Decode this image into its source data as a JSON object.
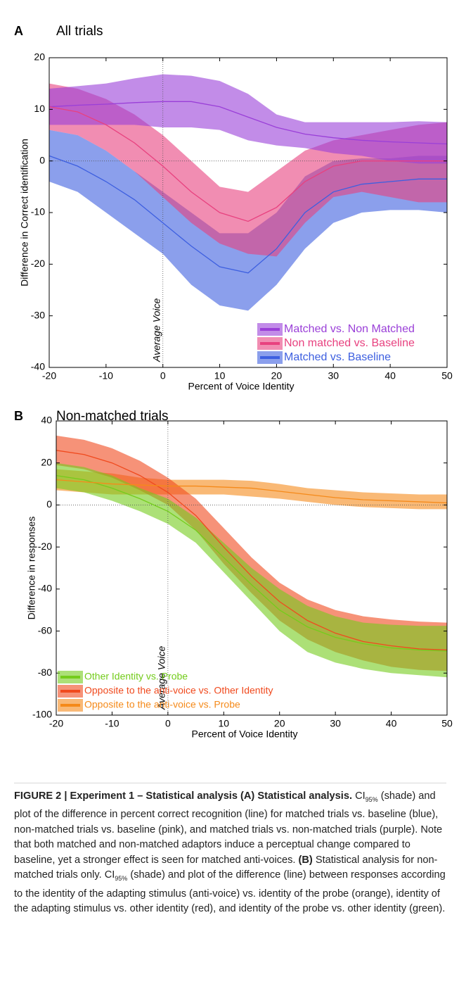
{
  "chart_data": [
    {
      "type": "line",
      "panel": "A",
      "title": "All trials",
      "xlabel": "Percent of Voice Identity",
      "ylabel": "Difference in Correct identification",
      "annotation": "Average Voice",
      "vline": 0,
      "hline": 0,
      "x": [
        -20,
        -15,
        -10,
        -5,
        0,
        5,
        10,
        15,
        20,
        25,
        30,
        35,
        40,
        45,
        50
      ],
      "xlim": [
        -20,
        50
      ],
      "xticks": [
        -20,
        -10,
        0,
        10,
        20,
        30,
        40,
        50
      ],
      "ylim": [
        -40,
        20
      ],
      "yticks": [
        -40,
        -30,
        -20,
        -10,
        0,
        10,
        20
      ],
      "legend": "lower right",
      "series": [
        {
          "name": "Matched vs. Non Matched",
          "color": "#9a3fd8",
          "values": [
            10.5,
            10.8,
            11,
            11.3,
            11.5,
            11.5,
            10.5,
            8.5,
            6.5,
            5.2,
            4.5,
            4,
            3.7,
            3.5,
            3.3
          ],
          "upper": [
            14,
            14.5,
            15,
            16,
            16.8,
            16.5,
            15.5,
            13,
            9,
            7.5,
            7.5,
            7.5,
            7.5,
            7.7,
            7.5
          ],
          "lower": [
            7,
            7,
            7,
            7,
            6.5,
            6.5,
            6,
            4,
            3,
            2.5,
            1.5,
            1,
            0,
            -0.5,
            -0.5
          ]
        },
        {
          "name": "Non matched vs. Baseline",
          "color": "#e8417f",
          "values": [
            10.5,
            9.5,
            7,
            3.5,
            -1,
            -6,
            -10,
            -11.7,
            -9,
            -4,
            -1,
            0,
            0,
            0,
            0
          ],
          "upper": [
            15,
            14,
            12,
            9,
            5,
            0,
            -5,
            -6,
            -2,
            2,
            4,
            5,
            6,
            7,
            7.5
          ],
          "lower": [
            6,
            5,
            2,
            -2,
            -7,
            -12,
            -16,
            -18,
            -18.5,
            -12,
            -7,
            -6,
            -7,
            -8,
            -8
          ]
        },
        {
          "name": "Matched vs. Baseline",
          "color": "#3d5fe0",
          "values": [
            1,
            -1,
            -4,
            -7.5,
            -12,
            -16.5,
            -20.5,
            -21.7,
            -17,
            -10,
            -6,
            -4.5,
            -4,
            -3.5,
            -3.5
          ],
          "upper": [
            6,
            5,
            2,
            -2,
            -6,
            -10,
            -14,
            -14,
            -10,
            -3,
            0,
            0.5,
            0.5,
            1,
            1
          ],
          "lower": [
            -4,
            -6,
            -10,
            -14,
            -18,
            -24,
            -28,
            -29,
            -24,
            -17,
            -12,
            -10,
            -9.5,
            -9.5,
            -10
          ]
        }
      ]
    },
    {
      "type": "line",
      "panel": "B",
      "title": "Non-matched trials",
      "xlabel": "Percent of Voice Identity",
      "ylabel": "Difference in responses",
      "annotation": "Average Voice",
      "vline": 0,
      "hline": 0,
      "x": [
        -20,
        -15,
        -10,
        -5,
        0,
        5,
        10,
        15,
        20,
        25,
        30,
        35,
        40,
        45,
        50
      ],
      "xlim": [
        -20,
        50
      ],
      "xticks": [
        -20,
        -10,
        0,
        10,
        20,
        30,
        40,
        50
      ],
      "ylim": [
        -100,
        40
      ],
      "yticks": [
        -100,
        -80,
        -60,
        -40,
        -20,
        0,
        20,
        40
      ],
      "legend": "lower left",
      "series": [
        {
          "name": "Other Identity vs. Probe",
          "color": "#74cc1c",
          "values": [
            14,
            12,
            8,
            3,
            -3,
            -12,
            -25,
            -38,
            -50,
            -58,
            -63,
            -66,
            -68,
            -69,
            -69.5
          ],
          "upper": [
            20,
            18,
            14,
            8,
            3,
            -6,
            -18,
            -30,
            -40,
            -48,
            -53,
            -56,
            -57,
            -57.5,
            -57.5
          ],
          "lower": [
            8,
            6,
            2,
            -3,
            -9,
            -18,
            -32,
            -46,
            -60,
            -70,
            -75,
            -78,
            -80,
            -81,
            -82
          ]
        },
        {
          "name": "Opposite to the anti-voice vs. Other Identity",
          "color": "#f04a1e",
          "values": [
            26,
            24,
            20,
            14,
            6,
            -5,
            -20,
            -34,
            -46,
            -55,
            -61,
            -65,
            -67,
            -68.5,
            -69
          ],
          "upper": [
            33,
            31,
            27,
            21,
            13,
            3,
            -11,
            -25,
            -37,
            -45,
            -50,
            -53,
            -54.5,
            -55.5,
            -56
          ],
          "lower": [
            19,
            17,
            13,
            7,
            0,
            -12,
            -28,
            -42,
            -55,
            -64,
            -70,
            -74,
            -77,
            -78.5,
            -79
          ]
        },
        {
          "name": "Opposite to the anti-voice vs. Probe",
          "color": "#f58a1a",
          "values": [
            12,
            11,
            10,
            9.5,
            9,
            9,
            8.5,
            8,
            6.5,
            5,
            3.5,
            2.5,
            2,
            1.5,
            1
          ],
          "upper": [
            17,
            16,
            15,
            13,
            12,
            12,
            12,
            11.5,
            10,
            8,
            7,
            6,
            5.5,
            5,
            5
          ],
          "lower": [
            7,
            6,
            5,
            5,
            5,
            5,
            5,
            4,
            3,
            1.5,
            0,
            -1,
            -1.5,
            -2,
            -2
          ]
        }
      ]
    }
  ],
  "caption": [
    {
      "text": "FIGURE 2 | Experiment 1 – Statistical analysis (A) Statistical analysis.",
      "bold": true
    },
    {
      "text": " CI"
    },
    {
      "text": "95%",
      "sub": true
    },
    {
      "text": " (shade) and plot of the difference in percent correct recognition (line) for matched trials vs. baseline (blue), non-matched trials vs. baseline (pink), and matched trials vs. non-matched trials (purple). Note that both matched and non-matched adaptors induce a perceptual change compared to baseline, yet a stronger effect is seen for matched anti-voices. "
    },
    {
      "text": "(B)",
      "bold": true
    },
    {
      "text": " Statistical analysis for non-matched trials only. CI"
    },
    {
      "text": "95%",
      "sub": true
    },
    {
      "text": " (shade) and plot of the difference (line) between responses according to the identity of the adapting stimulus (anti-voice) vs. identity of the probe (orange), identity of the adapting stimulus vs. other identity (red), and identity of the probe vs. other identity (green)."
    }
  ]
}
